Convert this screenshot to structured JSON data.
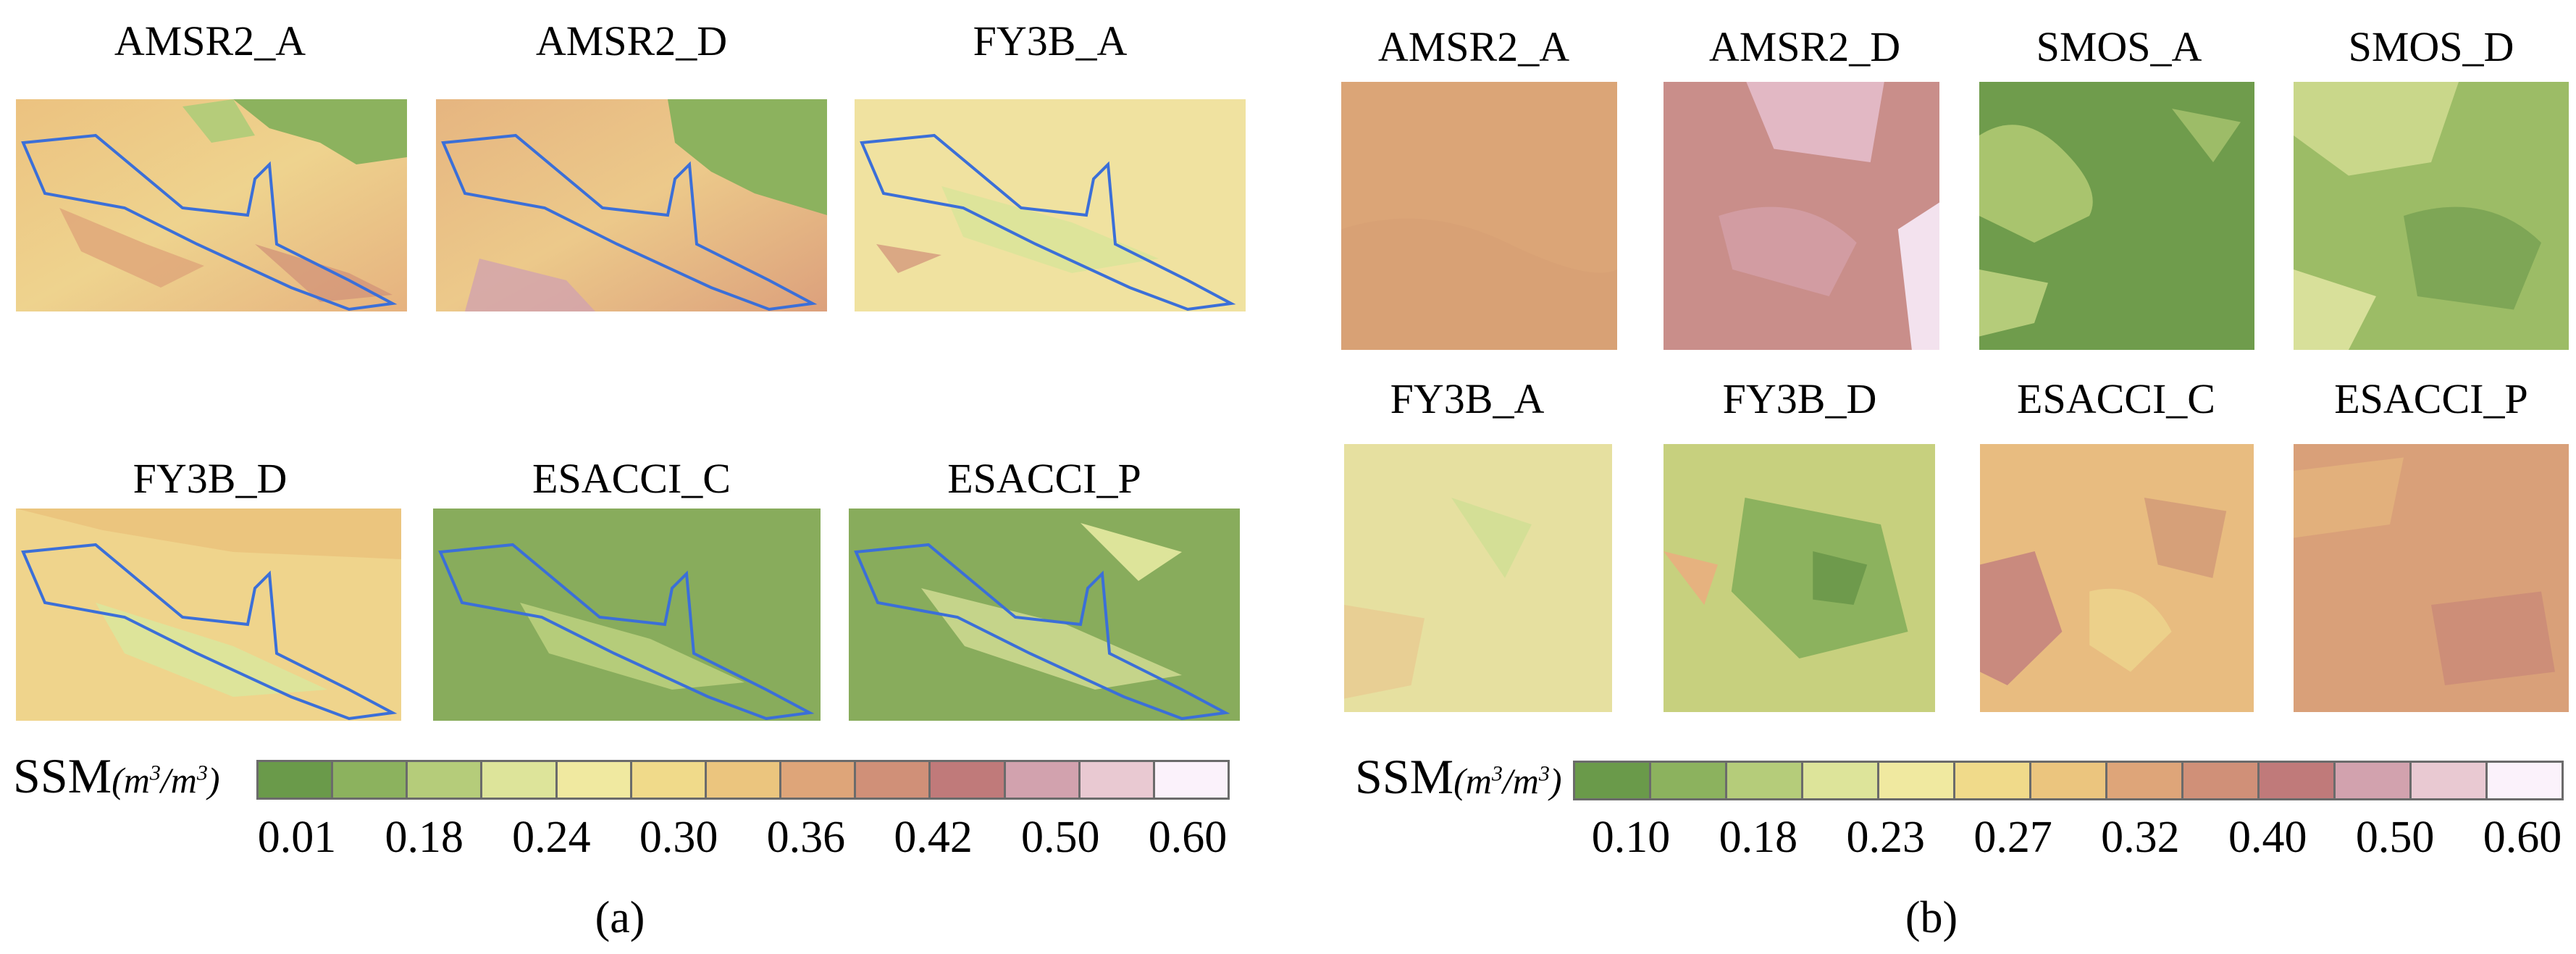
{
  "panel_a": {
    "label": "(a)",
    "maps": [
      {
        "title": "AMSR2_A"
      },
      {
        "title": "AMSR2_D"
      },
      {
        "title": "FY3B_A"
      },
      {
        "title": "FY3B_D"
      },
      {
        "title": "ESACCI_C"
      },
      {
        "title": "ESACCI_P"
      }
    ],
    "colorbar": {
      "title": "SSM",
      "unit_num": "m",
      "unit_den": "m",
      "unit_exp": "3",
      "ticks": [
        "0.01",
        "0.18",
        "0.24",
        "0.30",
        "0.36",
        "0.42",
        "0.50",
        "0.60"
      ],
      "colors": [
        "#6a9a4a",
        "#8cb25e",
        "#b5cc7a",
        "#dde49a",
        "#f0e9a0",
        "#f0da8a",
        "#ebc57e",
        "#dea579",
        "#d09078",
        "#c07a7a",
        "#d2a2ae",
        "#e9c9d2",
        "#fbf2fb"
      ]
    }
  },
  "panel_b": {
    "label": "(b)",
    "maps": [
      {
        "title": "AMSR2_A"
      },
      {
        "title": "AMSR2_D"
      },
      {
        "title": "SMOS_A"
      },
      {
        "title": "SMOS_D"
      },
      {
        "title": "FY3B_A"
      },
      {
        "title": "FY3B_D"
      },
      {
        "title": "ESACCI_C"
      },
      {
        "title": "ESACCI_P"
      }
    ],
    "colorbar": {
      "title": "SSM",
      "unit_num": "m",
      "unit_den": "m",
      "unit_exp": "3",
      "ticks": [
        "0.10",
        "0.18",
        "0.23",
        "0.27",
        "0.32",
        "0.40",
        "0.50",
        "0.60"
      ],
      "colors": [
        "#6a9a4a",
        "#8cb25e",
        "#b5cc7a",
        "#dde49a",
        "#f0e9a0",
        "#f0da8a",
        "#ebc57e",
        "#dea579",
        "#d09078",
        "#c07a7a",
        "#d2a2ae",
        "#e9c9d2",
        "#fbf2fb"
      ]
    }
  }
}
